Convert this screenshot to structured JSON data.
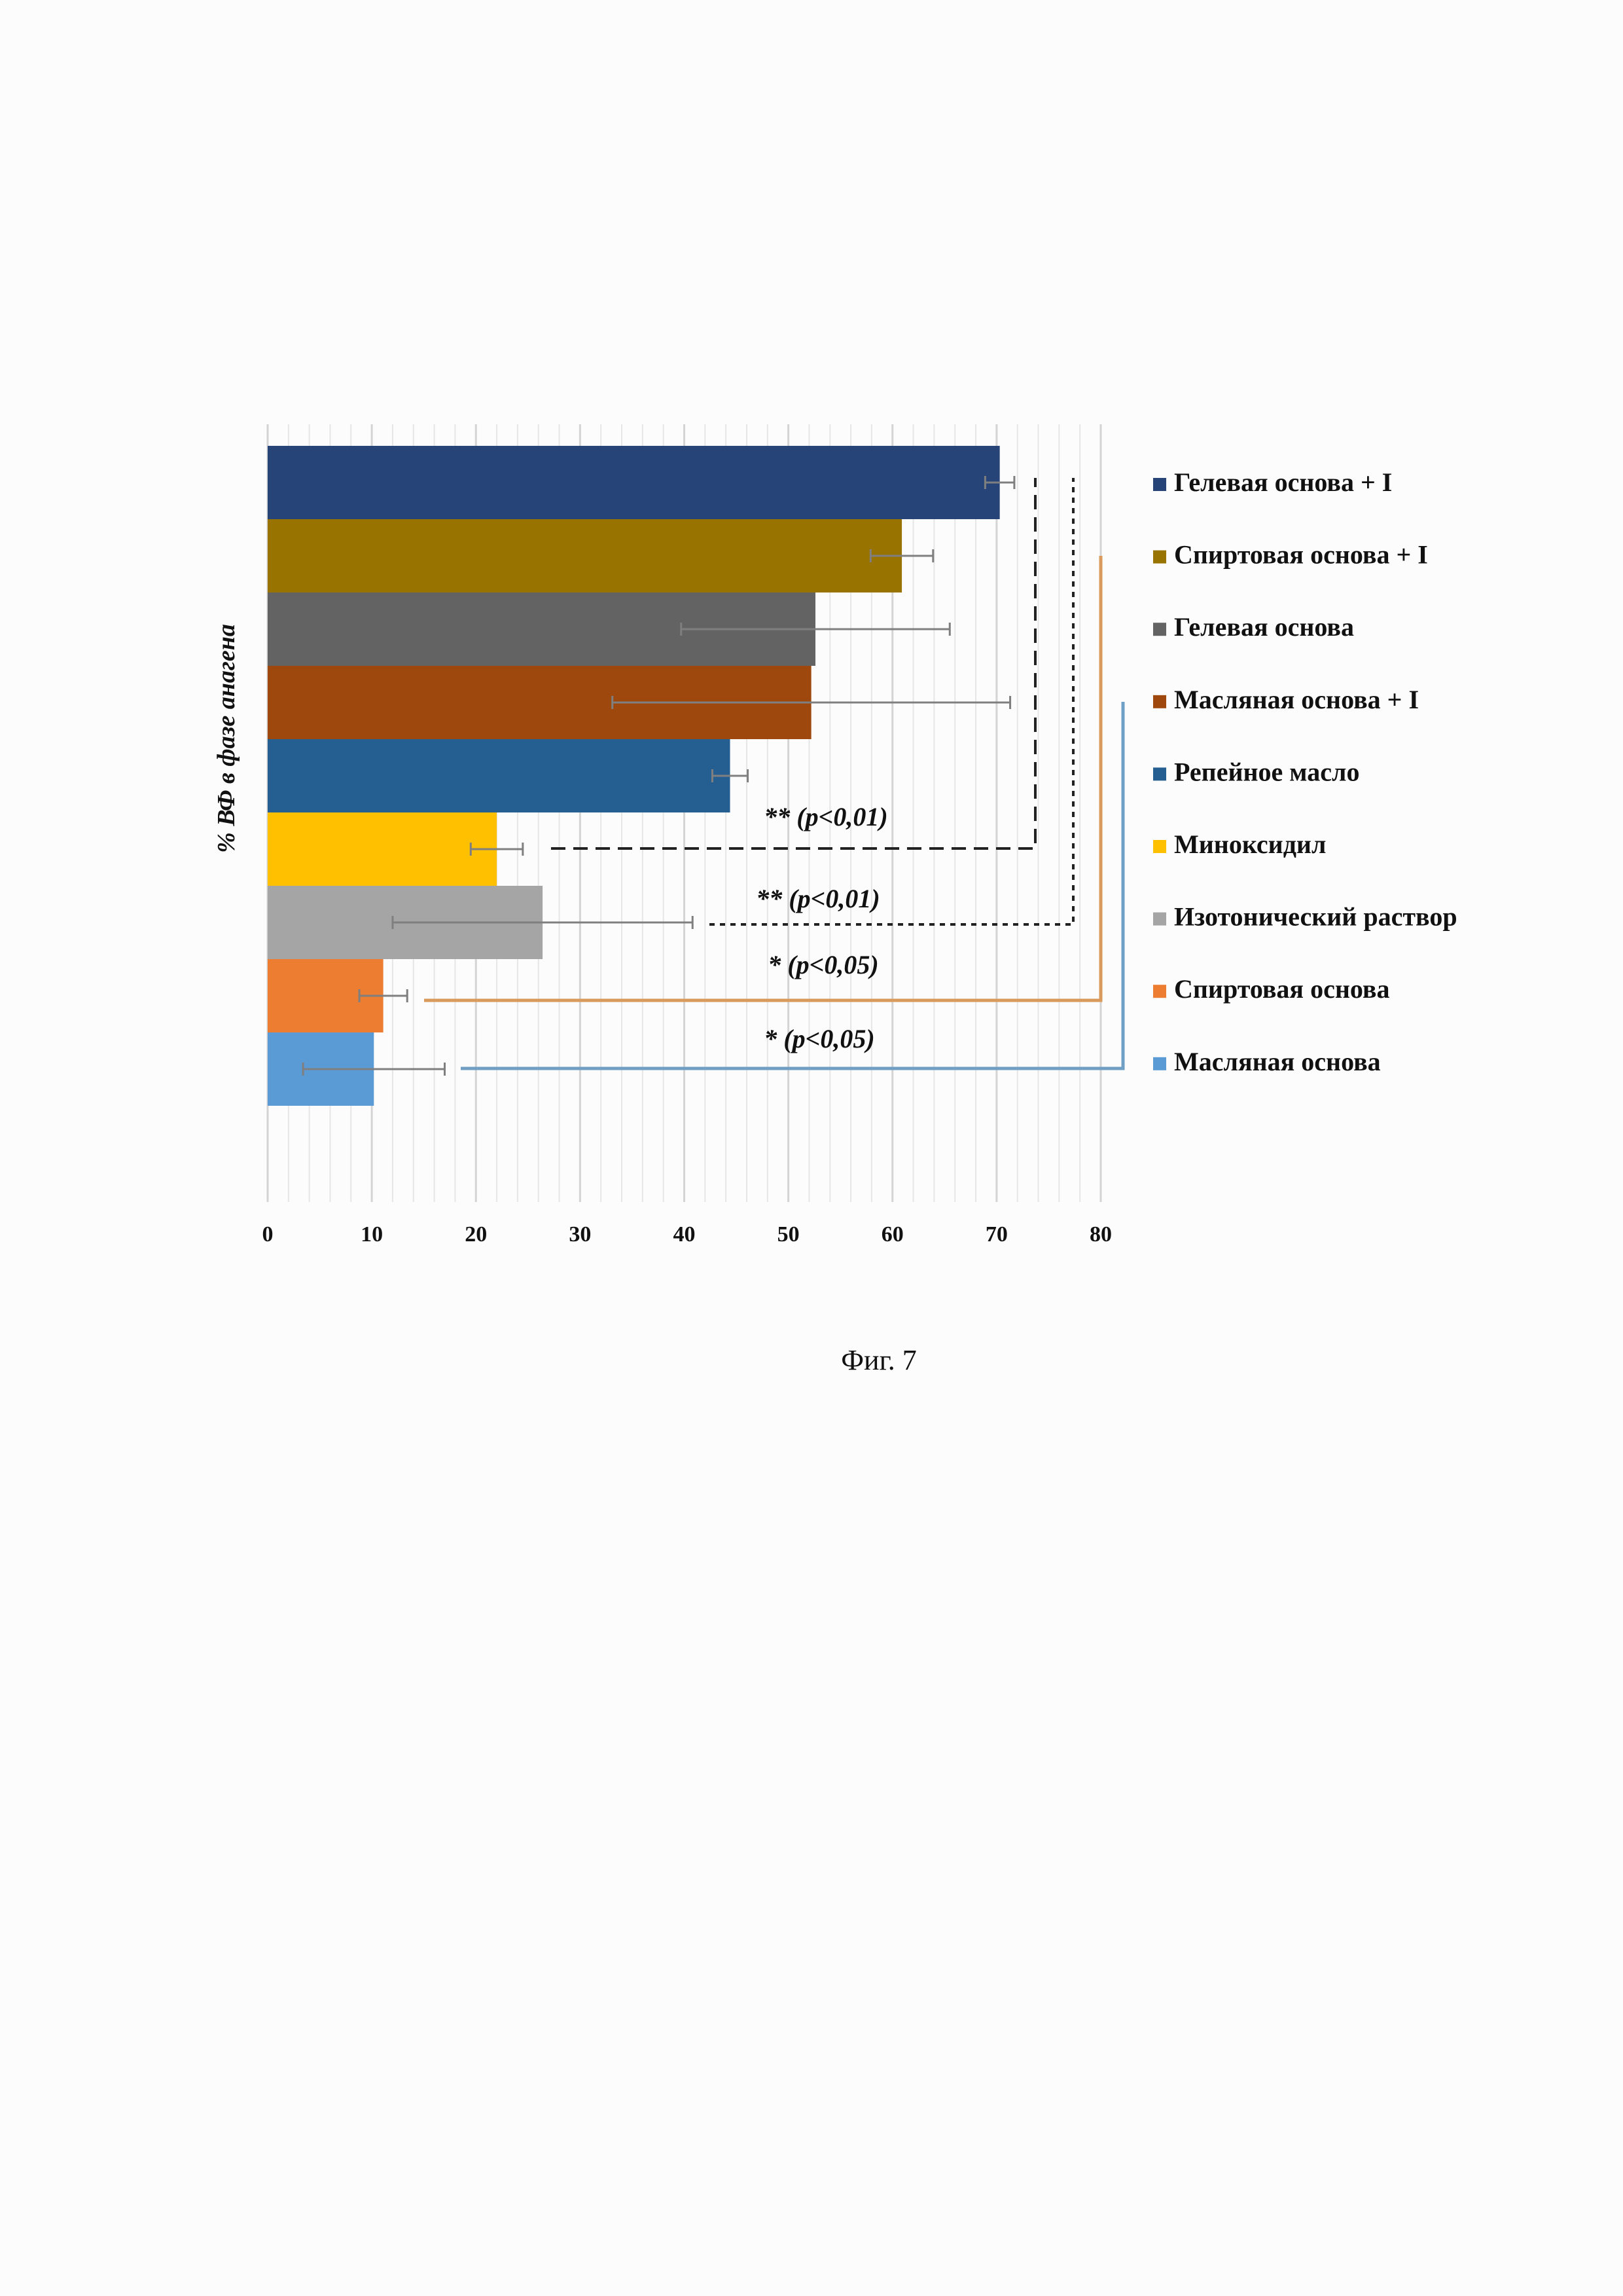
{
  "chart_data": {
    "type": "bar",
    "orientation": "horizontal",
    "title": "",
    "xlabel": "",
    "ylabel": "% ВФ в фазе анагена",
    "xlim": [
      0,
      80
    ],
    "xticks": [
      0,
      10,
      20,
      30,
      40,
      50,
      60,
      70,
      80
    ],
    "grid": true,
    "legend_position": "right",
    "categories": [
      "Гелевая основа + I",
      "Спиртовая основа + I",
      "Гелевая основа",
      "Масляная основа + I",
      "Репейное масло",
      "Миноксидил",
      "Изотонический раствор",
      "Спиртовая основа",
      "Масляная основа"
    ],
    "values": [
      70.3,
      60.9,
      52.6,
      52.2,
      44.4,
      22.0,
      26.4,
      11.1,
      10.2
    ],
    "errors": [
      1.4,
      3.0,
      12.9,
      19.1,
      1.7,
      2.5,
      14.4,
      2.3,
      6.8
    ],
    "colors": [
      "#264478",
      "#997300",
      "#636363",
      "#9e480e",
      "#255e91",
      "#ffc000",
      "#a5a5a5",
      "#ed7d31",
      "#5b9bd5"
    ],
    "annotations": [
      {
        "text": "** (p<0,01)",
        "compare": [
          "Гелевая основа + I",
          "Миноксидил"
        ],
        "style": "dashed",
        "color": "#222222"
      },
      {
        "text": "** (p<0,01)",
        "compare": [
          "Гелевая основа + I",
          "Изотонический раствор"
        ],
        "style": "dotted",
        "color": "#222222"
      },
      {
        "text": "* (p<0,05)",
        "compare": [
          "Спиртовая основа + I",
          "Спиртовая основа"
        ],
        "style": "solid",
        "color": "#d99a5c"
      },
      {
        "text": "* (p<0,05)",
        "compare": [
          "Масляная основа + I",
          "Масляная основа"
        ],
        "style": "solid",
        "color": "#6f9fc4"
      }
    ]
  },
  "caption": "Фиг. 7"
}
